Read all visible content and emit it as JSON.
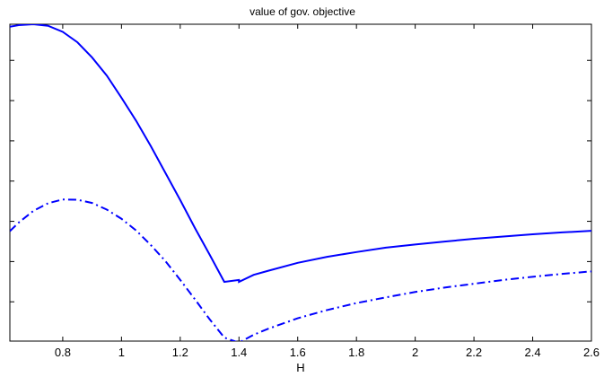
{
  "chart_data": {
    "type": "line",
    "title": "value of gov. objective",
    "xlabel": "H",
    "ylabel": "",
    "xlim": [
      0.62,
      2.6
    ],
    "ylim": [
      0,
      1
    ],
    "xticks": [
      0.8,
      1,
      1.2,
      1.4,
      1.6,
      1.8,
      2,
      2.2,
      2.4,
      2.6
    ],
    "xtick_labels": [
      "0.8",
      "1",
      "1.2",
      "1.4",
      "1.6",
      "1.8",
      "2",
      "2.2",
      "2.4",
      "2.6"
    ],
    "yticks": [
      0.124,
      0.251,
      0.378,
      0.505,
      0.632,
      0.759,
      0.886
    ],
    "ytick_labels": [
      "",
      "",
      "",
      "",
      "",
      "",
      ""
    ],
    "grid": false,
    "series": [
      {
        "style": "solid",
        "color": "#0000ff",
        "x": [
          0.62,
          0.65,
          0.7,
          0.75,
          0.8,
          0.85,
          0.9,
          0.95,
          1.0,
          1.05,
          1.1,
          1.15,
          1.2,
          1.25,
          1.3,
          1.35,
          1.4,
          1.45,
          1.5,
          1.6,
          1.7,
          1.8,
          1.9,
          2.0,
          2.1,
          2.2,
          2.3,
          2.4,
          2.5,
          2.6
        ],
        "y": [
          0.992,
          0.997,
          1.0,
          0.995,
          0.976,
          0.943,
          0.895,
          0.838,
          0.768,
          0.695,
          0.615,
          0.53,
          0.445,
          0.357,
          0.273,
          0.187,
          0.193,
          0.209,
          0.222,
          0.247,
          0.266,
          0.281,
          0.295,
          0.305,
          0.314,
          0.323,
          0.33,
          0.337,
          0.343,
          0.348
        ],
        "x_extra": [
          1.4
        ],
        "y_extra": [
          0.187
        ]
      },
      {
        "style": "dash-dot",
        "color": "#0000ff",
        "x": [
          0.62,
          0.65,
          0.7,
          0.75,
          0.8,
          0.85,
          0.9,
          0.95,
          1.0,
          1.05,
          1.1,
          1.15,
          1.2,
          1.25,
          1.3,
          1.35,
          1.4,
          1.45,
          1.5,
          1.6,
          1.7,
          1.8,
          1.9,
          2.0,
          2.1,
          2.2,
          2.3,
          2.4,
          2.5,
          2.6
        ],
        "y": [
          0.347,
          0.374,
          0.411,
          0.435,
          0.447,
          0.446,
          0.436,
          0.415,
          0.386,
          0.349,
          0.303,
          0.252,
          0.193,
          0.132,
          0.069,
          0.011,
          -0.005,
          0.02,
          0.039,
          0.072,
          0.098,
          0.12,
          0.138,
          0.155,
          0.169,
          0.181,
          0.193,
          0.203,
          0.212,
          0.22
        ]
      }
    ]
  }
}
